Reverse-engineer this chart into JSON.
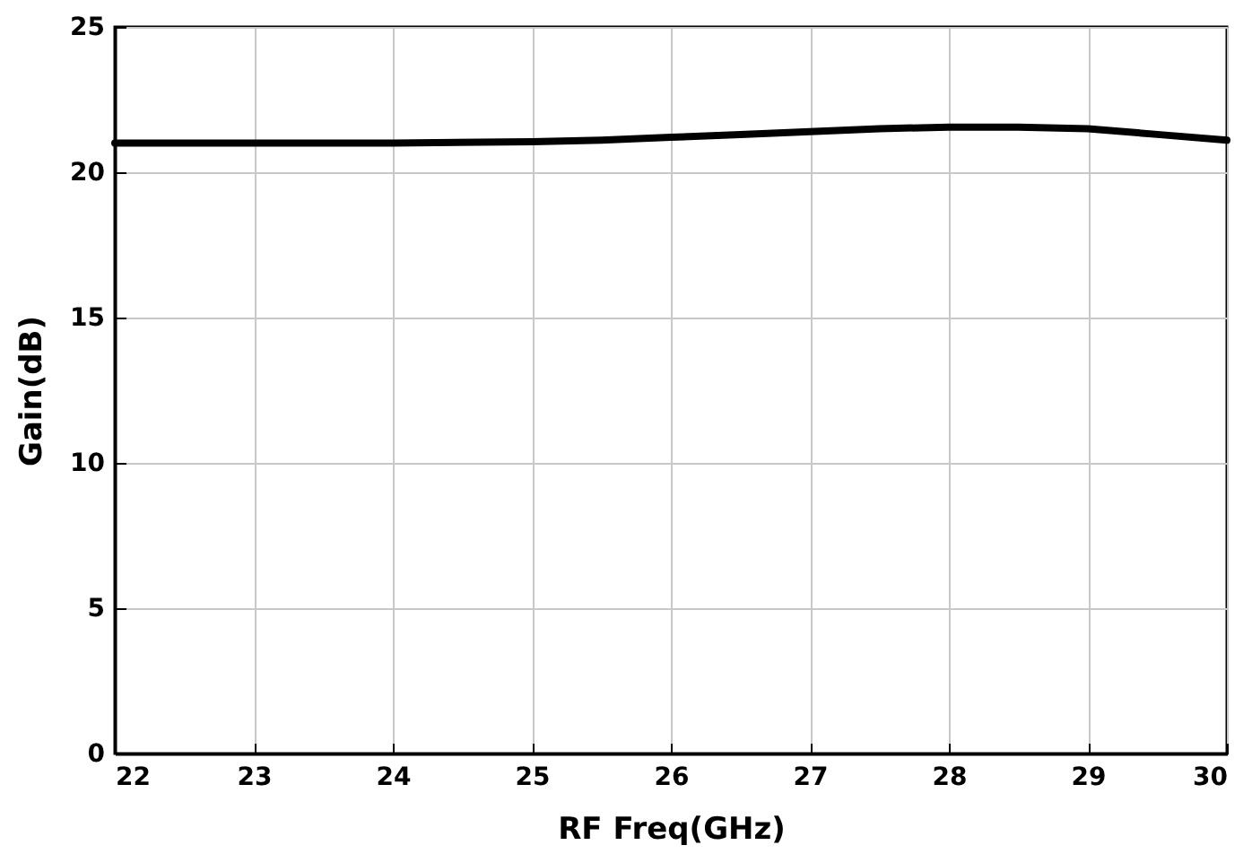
{
  "chart_data": {
    "type": "line",
    "xlabel": "RF  Freq(GHz)",
    "ylabel": "Gain(dB)",
    "x": [
      22,
      23,
      24,
      25,
      25.5,
      26,
      26.5,
      27,
      27.5,
      28,
      28.5,
      29,
      29.5,
      30
    ],
    "series": [
      {
        "color": "#000000",
        "values": [
          21.0,
          21.0,
          21.0,
          21.05,
          21.1,
          21.2,
          21.3,
          21.4,
          21.5,
          21.55,
          21.55,
          21.5,
          21.3,
          21.1
        ]
      }
    ],
    "xlim": [
      22,
      30
    ],
    "xticks": [
      22,
      23,
      24,
      25,
      26,
      27,
      28,
      29,
      30
    ],
    "ylim": [
      0,
      25
    ],
    "yticks": [
      0,
      5,
      10,
      15,
      20,
      25
    ],
    "grid": true,
    "marker": "none",
    "line_style": "solid"
  }
}
